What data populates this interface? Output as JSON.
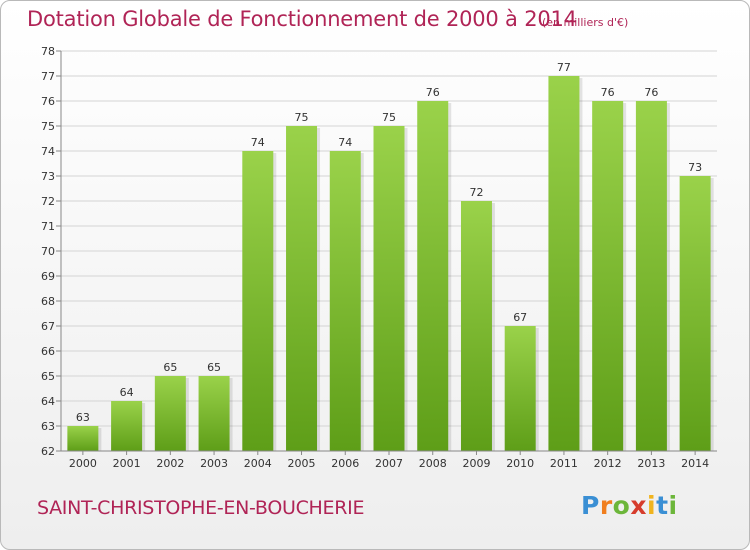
{
  "title": "Dotation Globale de Fonctionnement de 2000 à 2014",
  "subtitle": "(en milliers d'€)",
  "commune": "SAINT-CHRISTOPHE-EN-BOUCHERIE",
  "logo": {
    "text": "Proxiti",
    "letters": [
      "P",
      "r",
      "o",
      "x",
      "i",
      "t",
      "i"
    ],
    "colors": [
      "#3a8fd4",
      "#f07e1e",
      "#6cb63a",
      "#d63c2c",
      "#f0b41e",
      "#3a8fd4",
      "#6cb63a"
    ]
  },
  "colors": {
    "bar_top": "#9ad24a",
    "bar_bottom": "#5e9e18",
    "grid": "#d4d4d4",
    "axis": "#888888",
    "text": "#333333",
    "accent": "#b02456"
  },
  "chart_data": {
    "type": "bar",
    "title": "Dotation Globale de Fonctionnement de 2000 à 2014",
    "subtitle": "(en milliers d'€)",
    "xlabel": "",
    "ylabel": "",
    "categories": [
      "2000",
      "2001",
      "2002",
      "2003",
      "2004",
      "2005",
      "2006",
      "2007",
      "2008",
      "2009",
      "2010",
      "2011",
      "2012",
      "2013",
      "2014"
    ],
    "values": [
      63,
      64,
      65,
      65,
      74,
      75,
      74,
      75,
      76,
      72,
      67,
      77,
      76,
      76,
      73
    ],
    "ylim": [
      62,
      78
    ],
    "yticks": [
      62,
      63,
      64,
      65,
      66,
      67,
      68,
      69,
      70,
      71,
      72,
      73,
      74,
      75,
      76,
      77,
      78
    ],
    "grid": true,
    "data_labels": true
  }
}
